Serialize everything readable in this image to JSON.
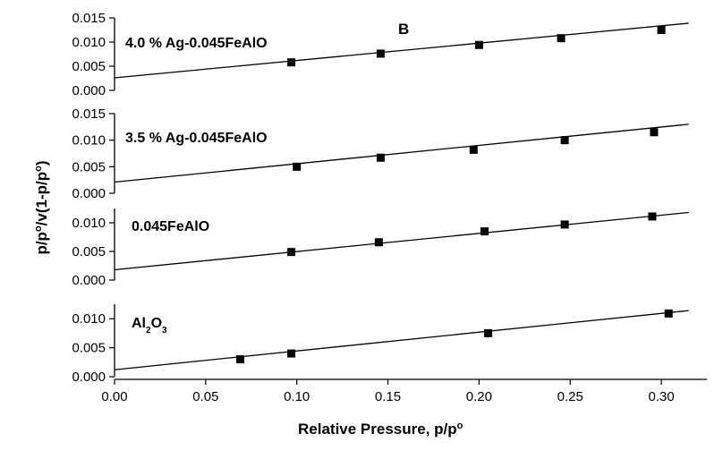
{
  "figure": {
    "panel_letter": "B",
    "xlabel_main": "Relative Pressure, p/p",
    "xlabel_sup": "o",
    "ylabel_parts": [
      {
        "text": "p/p"
      },
      {
        "text": "o",
        "sup": true
      },
      {
        "text": "/v(1-p/p"
      },
      {
        "text": "o",
        "sup": true
      },
      {
        "text": ")"
      }
    ]
  },
  "chart_data": {
    "type": "scatter",
    "x_axis": {
      "range": [
        0.0,
        0.325
      ],
      "ticks": [
        0.0,
        0.05,
        0.1,
        0.15,
        0.2,
        0.25,
        0.3
      ],
      "tick_labels": [
        "0.00",
        "0.05",
        "0.10",
        "0.15",
        "0.20",
        "0.25",
        "0.30"
      ]
    },
    "panels": [
      {
        "label": [
          {
            "text": "4.0 % Ag-0.045FeAlO"
          }
        ],
        "ylim": [
          0.0,
          0.015
        ],
        "yticks": [
          0.0,
          0.005,
          0.01,
          0.015
        ],
        "ytick_labels": [
          "0.000",
          "0.005",
          "0.010",
          "0.015"
        ],
        "points": [
          [
            0.097,
            0.0058
          ],
          [
            0.146,
            0.0076
          ],
          [
            0.2,
            0.0094
          ],
          [
            0.245,
            0.0108
          ],
          [
            0.3,
            0.0125
          ]
        ],
        "fit_line": {
          "x": [
            0.0,
            0.315
          ],
          "y": [
            0.0026,
            0.0139
          ]
        }
      },
      {
        "label": [
          {
            "text": "3.5 % Ag-0.045FeAlO"
          }
        ],
        "ylim": [
          0.0,
          0.015
        ],
        "yticks": [
          0.0,
          0.005,
          0.01,
          0.015
        ],
        "ytick_labels": [
          "0.000",
          "0.005",
          "0.010",
          "0.015"
        ],
        "points": [
          [
            0.1,
            0.005
          ],
          [
            0.146,
            0.0067
          ],
          [
            0.197,
            0.0082
          ],
          [
            0.247,
            0.01
          ],
          [
            0.296,
            0.0115
          ]
        ],
        "fit_line": {
          "x": [
            0.0,
            0.315
          ],
          "y": [
            0.0021,
            0.013
          ]
        }
      },
      {
        "label": [
          {
            "text": "0.045FeAlO"
          }
        ],
        "ylim": [
          0.0,
          0.0125
        ],
        "yticks": [
          0.0,
          0.005,
          0.01
        ],
        "ytick_labels": [
          "0.000",
          "0.005",
          "0.010"
        ],
        "points": [
          [
            0.097,
            0.0049
          ],
          [
            0.145,
            0.0066
          ],
          [
            0.203,
            0.0085
          ],
          [
            0.247,
            0.0097
          ],
          [
            0.295,
            0.0111
          ]
        ],
        "fit_line": {
          "x": [
            0.0,
            0.315
          ],
          "y": [
            0.0018,
            0.0118
          ]
        }
      },
      {
        "label": [
          {
            "text": "Al"
          },
          {
            "text": "2",
            "sub": true
          },
          {
            "text": "O"
          },
          {
            "text": "3",
            "sub": true
          }
        ],
        "ylim": [
          0.0,
          0.0125
        ],
        "yticks": [
          0.0,
          0.005,
          0.01
        ],
        "ytick_labels": [
          "0.000",
          "0.005",
          "0.010"
        ],
        "points": [
          [
            0.069,
            0.003
          ],
          [
            0.097,
            0.004
          ],
          [
            0.205,
            0.0075
          ],
          [
            0.304,
            0.0109
          ]
        ],
        "fit_line": {
          "x": [
            0.0,
            0.315
          ],
          "y": [
            0.0012,
            0.0114
          ]
        }
      }
    ]
  }
}
